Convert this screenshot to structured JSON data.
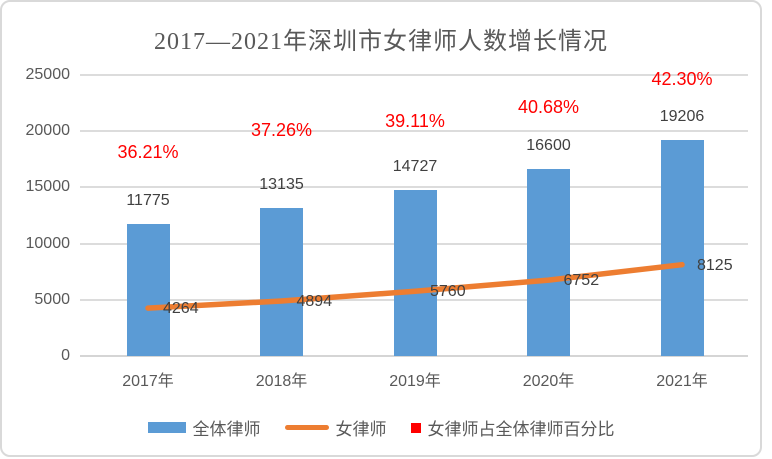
{
  "chart_data": {
    "type": "bar",
    "title": "2017—2021年深圳市女律师人数增长情况",
    "categories": [
      "2017年",
      "2018年",
      "2019年",
      "2020年",
      "2021年"
    ],
    "series": [
      {
        "name": "全体律师",
        "type": "bar",
        "color": "#5B9BD5",
        "values": [
          11775,
          13135,
          14727,
          16600,
          19206
        ]
      },
      {
        "name": "女律师",
        "type": "line",
        "color": "#ED7D31",
        "values": [
          4264,
          4894,
          5760,
          6752,
          8125
        ]
      },
      {
        "name": "女律师占全体律师百分比",
        "type": "percent-labels",
        "color": "#FF0000",
        "values": [
          "36.21%",
          "37.26%",
          "39.11%",
          "40.68%",
          "42.30%"
        ]
      }
    ],
    "y_axis": {
      "min": 0,
      "max": 25000,
      "ticks": [
        0,
        5000,
        10000,
        15000,
        20000,
        25000
      ]
    },
    "grid": true,
    "legend_position": "bottom"
  },
  "colors": {
    "bar": "#5B9BD5",
    "line": "#ED7D31",
    "percent": "#FF0000",
    "gridline": "#DCDCDC",
    "axis_text": "#595959",
    "value_text": "#404040"
  }
}
